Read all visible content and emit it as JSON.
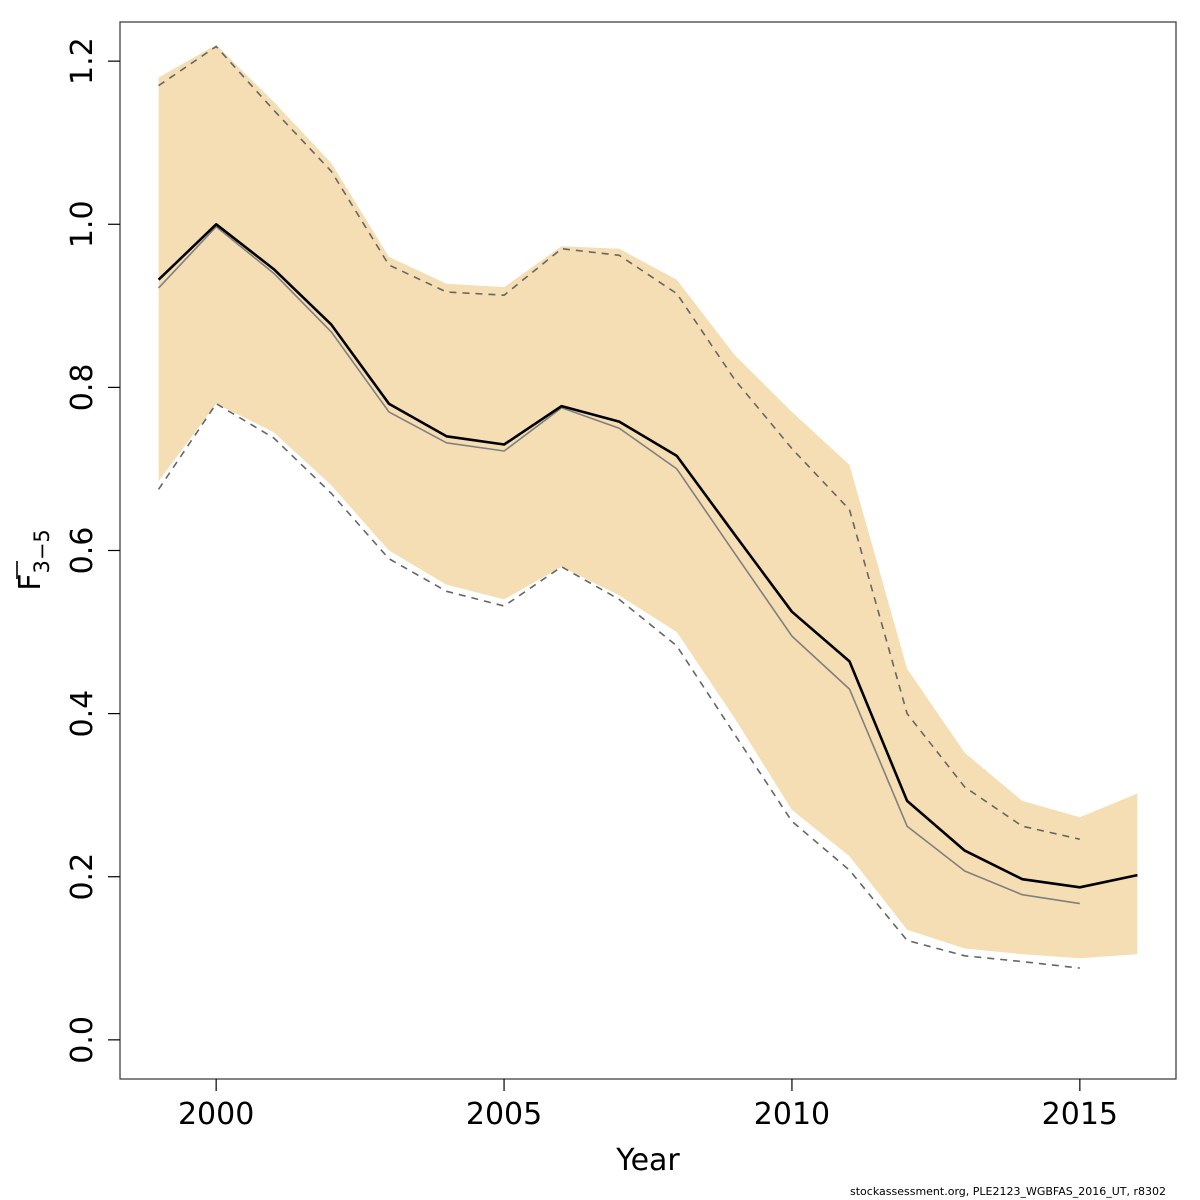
{
  "chart_data": {
    "type": "line",
    "xlabel": "Year",
    "ylabel": {
      "base": "F",
      "subscript": "3−5"
    },
    "xlim": [
      1998.33,
      2016.67
    ],
    "ylim": [
      -0.048,
      1.248
    ],
    "x_ticks": [
      2000,
      2005,
      2010,
      2015
    ],
    "y_ticks": [
      0.0,
      0.2,
      0.4,
      0.6,
      0.8,
      1.0,
      1.2
    ],
    "colors": {
      "band": "#f5deb3",
      "current": "#000000",
      "previous": "#808080",
      "previous_bounds": "#666666"
    },
    "band": {
      "x": [
        1999,
        2000,
        2001,
        2002,
        2003,
        2004,
        2005,
        2006,
        2007,
        2008,
        2009,
        2010,
        2011,
        2012,
        2013,
        2014,
        2015,
        2016
      ],
      "upper": [
        1.18,
        1.22,
        1.15,
        1.075,
        0.96,
        0.927,
        0.923,
        0.973,
        0.97,
        0.932,
        0.84,
        0.77,
        0.705,
        0.455,
        0.352,
        0.293,
        0.273,
        0.302
      ],
      "lower": [
        0.685,
        0.78,
        0.745,
        0.68,
        0.6,
        0.558,
        0.54,
        0.58,
        0.545,
        0.5,
        0.395,
        0.282,
        0.225,
        0.135,
        0.112,
        0.105,
        0.1,
        0.105
      ]
    },
    "series": [
      {
        "style": "solid-black",
        "x": [
          1999,
          2000,
          2001,
          2002,
          2003,
          2004,
          2005,
          2006,
          2007,
          2008,
          2009,
          2010,
          2011,
          2012,
          2013,
          2014,
          2015,
          2016
        ],
        "values": [
          0.932,
          1.0,
          0.945,
          0.877,
          0.78,
          0.74,
          0.73,
          0.777,
          0.758,
          0.716,
          0.62,
          0.525,
          0.464,
          0.293,
          0.232,
          0.197,
          0.187,
          0.202
        ]
      },
      {
        "style": "solid-grey",
        "x": [
          1999,
          2000,
          2001,
          2002,
          2003,
          2004,
          2005,
          2006,
          2007,
          2008,
          2009,
          2010,
          2011,
          2012,
          2013,
          2014,
          2015
        ],
        "values": [
          0.922,
          0.997,
          0.94,
          0.868,
          0.77,
          0.732,
          0.722,
          0.775,
          0.75,
          0.7,
          0.597,
          0.495,
          0.43,
          0.262,
          0.207,
          0.178,
          0.167
        ]
      },
      {
        "style": "dashed-upper",
        "x": [
          1999,
          2000,
          2001,
          2002,
          2003,
          2004,
          2005,
          2006,
          2007,
          2008,
          2009,
          2010,
          2011,
          2012,
          2013,
          2014,
          2015
        ],
        "values": [
          1.17,
          1.218,
          1.14,
          1.065,
          0.95,
          0.917,
          0.913,
          0.97,
          0.962,
          0.915,
          0.81,
          0.725,
          0.65,
          0.4,
          0.31,
          0.262,
          0.246
        ]
      },
      {
        "style": "dashed-lower",
        "x": [
          1999,
          2000,
          2001,
          2002,
          2003,
          2004,
          2005,
          2006,
          2007,
          2008,
          2009,
          2010,
          2011,
          2012,
          2013,
          2014,
          2015
        ],
        "values": [
          0.675,
          0.78,
          0.738,
          0.67,
          0.59,
          0.55,
          0.532,
          0.58,
          0.54,
          0.483,
          0.375,
          0.268,
          0.208,
          0.122,
          0.103,
          0.096,
          0.088
        ]
      }
    ]
  },
  "footer": "stockassessment.org, PLE2123_WGBFAS_2016_UT, r8302"
}
